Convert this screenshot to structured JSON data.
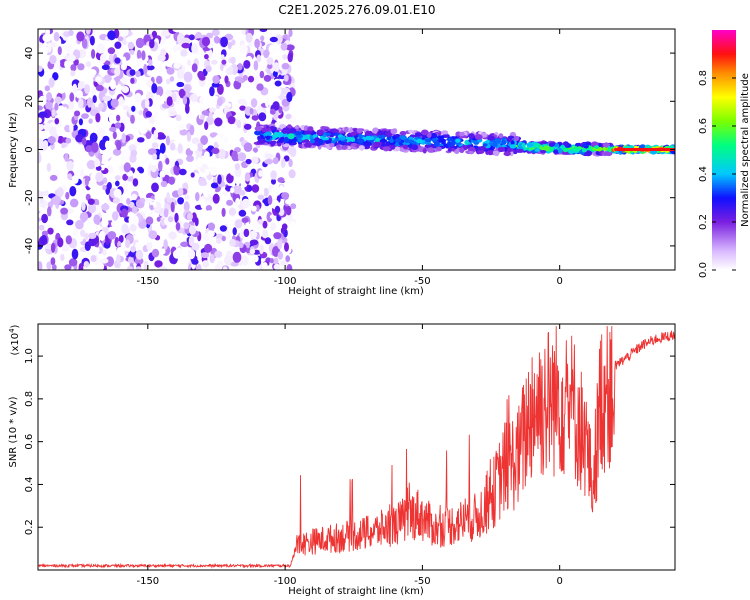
{
  "figure_title": "C2E1.2025.276.09.01.E10",
  "chart_data": [
    {
      "type": "heatmap",
      "title": "C2E1.2025.276.09.01.E10",
      "xlabel": "Height of straight line (km)",
      "ylabel": "Frequency (Hz)",
      "xlim": [
        -190,
        42
      ],
      "ylim": [
        -50,
        50
      ],
      "x_ticks": [
        -150,
        -100,
        -50,
        0
      ],
      "y_ticks": [
        -40,
        -20,
        0,
        20,
        40
      ],
      "colorbar": {
        "label": "Normalized spectral amplitude",
        "range": [
          0,
          1
        ],
        "ticks": [
          "0.0",
          "0.2",
          "0.4",
          "0.6",
          "0.8"
        ],
        "colormap": [
          "#ffffff",
          "#c9a3ff",
          "#8a2be2",
          "#0000ff",
          "#00bfff",
          "#00ff7f",
          "#7cff00",
          "#ffff00",
          "#ff8c00",
          "#ff0000",
          "#ff00ff"
        ]
      },
      "regions": [
        {
          "name": "noise",
          "x_range": [
            -190,
            -97
          ],
          "f_range": [
            -50,
            50
          ],
          "amplitude": 0.1
        },
        {
          "name": "signal-track-1",
          "x_range": [
            -110,
            -15
          ],
          "f_center": [
            6,
            2
          ],
          "f_width": 8,
          "amplitude": 0.4
        },
        {
          "name": "signal-track-2",
          "x_range": [
            -15,
            20
          ],
          "f_center": [
            1,
            0
          ],
          "f_width": 4,
          "amplitude": 0.6
        },
        {
          "name": "signal-track-3",
          "x_range": [
            20,
            42
          ],
          "f_center": [
            0,
            0
          ],
          "f_width": 2,
          "amplitude": 0.95
        }
      ]
    },
    {
      "type": "line",
      "title": "",
      "xlabel": "Height of straight line (km)",
      "ylabel": "SNR (10 * v/v)",
      "y_multiplier": "(x10",
      "y_multiplier_exp": "4",
      "xlim": [
        -190,
        42
      ],
      "ylim": [
        0,
        1.15
      ],
      "x_ticks": [
        -150,
        -100,
        -50,
        0
      ],
      "y_ticks": [
        0.2,
        0.4,
        0.6,
        0.8,
        1.0
      ],
      "series": [
        {
          "name": "SNR",
          "color": "#ee3333",
          "x": [
            -190,
            -170,
            -150,
            -130,
            -110,
            -98,
            -96,
            -90,
            -80,
            -70,
            -60,
            -52,
            -45,
            -40,
            -35,
            -30,
            -25,
            -20,
            -15,
            -12,
            -10,
            -5,
            0,
            5,
            10,
            12,
            15,
            20,
            25,
            30,
            35,
            42
          ],
          "y": [
            0.02,
            0.02,
            0.02,
            0.02,
            0.02,
            0.02,
            0.12,
            0.14,
            0.16,
            0.18,
            0.22,
            0.28,
            0.2,
            0.22,
            0.24,
            0.26,
            0.35,
            0.5,
            0.55,
            0.7,
            0.8,
            0.82,
            0.85,
            0.8,
            0.6,
            0.4,
            0.85,
            0.95,
            1.0,
            1.05,
            1.08,
            1.1
          ]
        }
      ]
    }
  ]
}
